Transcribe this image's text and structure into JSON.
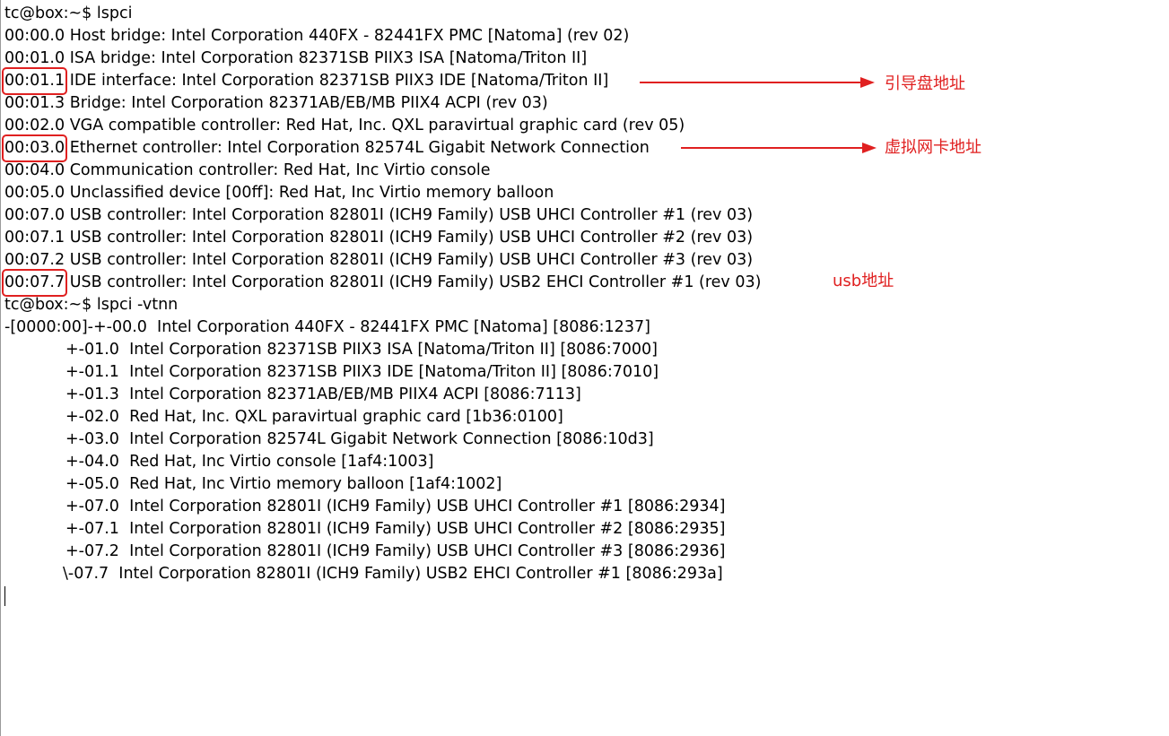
{
  "terminal": {
    "prompt1": "tc@box:~$ lspci",
    "lspci_rows": [
      {
        "addr": "00:00.0",
        "desc": " Host bridge: Intel Corporation 440FX - 82441FX PMC [Natoma] (rev 02)"
      },
      {
        "addr": "00:01.0",
        "desc": " ISA bridge: Intel Corporation 82371SB PIIX3 ISA [Natoma/Triton II]"
      },
      {
        "addr": "00:01.1",
        "desc": " IDE interface: Intel Corporation 82371SB PIIX3 IDE [Natoma/Triton II]"
      },
      {
        "addr": "00:01.3",
        "desc": " Bridge: Intel Corporation 82371AB/EB/MB PIIX4 ACPI (rev 03)"
      },
      {
        "addr": "00:02.0",
        "desc": " VGA compatible controller: Red Hat, Inc. QXL paravirtual graphic card (rev 05)"
      },
      {
        "addr": "00:03.0",
        "desc": " Ethernet controller: Intel Corporation 82574L Gigabit Network Connection"
      },
      {
        "addr": "00:04.0",
        "desc": " Communication controller: Red Hat, Inc Virtio console"
      },
      {
        "addr": "00:05.0",
        "desc": " Unclassified device [00ff]: Red Hat, Inc Virtio memory balloon"
      },
      {
        "addr": "00:07.0",
        "desc": " USB controller: Intel Corporation 82801I (ICH9 Family) USB UHCI Controller #1 (rev 03)"
      },
      {
        "addr": "00:07.1",
        "desc": " USB controller: Intel Corporation 82801I (ICH9 Family) USB UHCI Controller #2 (rev 03)"
      },
      {
        "addr": "00:07.2",
        "desc": " USB controller: Intel Corporation 82801I (ICH9 Family) USB UHCI Controller #3 (rev 03)"
      },
      {
        "addr": "00:07.7",
        "desc": " USB controller: Intel Corporation 82801I (ICH9 Family) USB2 EHCI Controller #1 (rev 03)"
      }
    ],
    "prompt2": "tc@box:~$ lspci -vtnn",
    "tree_root": "-[0000:00]-+-00.0  Intel Corporation 440FX - 82441FX PMC [Natoma] [8086:1237]",
    "tree_rows": [
      "+-01.0  Intel Corporation 82371SB PIIX3 ISA [Natoma/Triton II] [8086:7000]",
      "+-01.1  Intel Corporation 82371SB PIIX3 IDE [Natoma/Triton II] [8086:7010]",
      "+-01.3  Intel Corporation 82371AB/EB/MB PIIX4 ACPI [8086:7113]",
      "+-02.0  Red Hat, Inc. QXL paravirtual graphic card [1b36:0100]",
      "+-03.0  Intel Corporation 82574L Gigabit Network Connection [8086:10d3]",
      "+-04.0  Red Hat, Inc Virtio console [1af4:1003]",
      "+-05.0  Red Hat, Inc Virtio memory balloon [1af4:1002]",
      "+-07.0  Intel Corporation 82801I (ICH9 Family) USB UHCI Controller #1 [8086:2934]",
      "+-07.1  Intel Corporation 82801I (ICH9 Family) USB UHCI Controller #2 [8086:2935]",
      "+-07.2  Intel Corporation 82801I (ICH9 Family) USB UHCI Controller #3 [8086:2936]"
    ],
    "tree_last": "\\-07.7  Intel Corporation 82801I (ICH9 Family) USB2 EHCI Controller #1 [8086:293a]"
  },
  "annotations": {
    "boot_disk": "引导盘地址",
    "nic": "虚拟网卡地址",
    "usb": "usb地址"
  },
  "colors": {
    "highlight": "#e02020",
    "text": "#000000",
    "background": "#ffffff"
  }
}
